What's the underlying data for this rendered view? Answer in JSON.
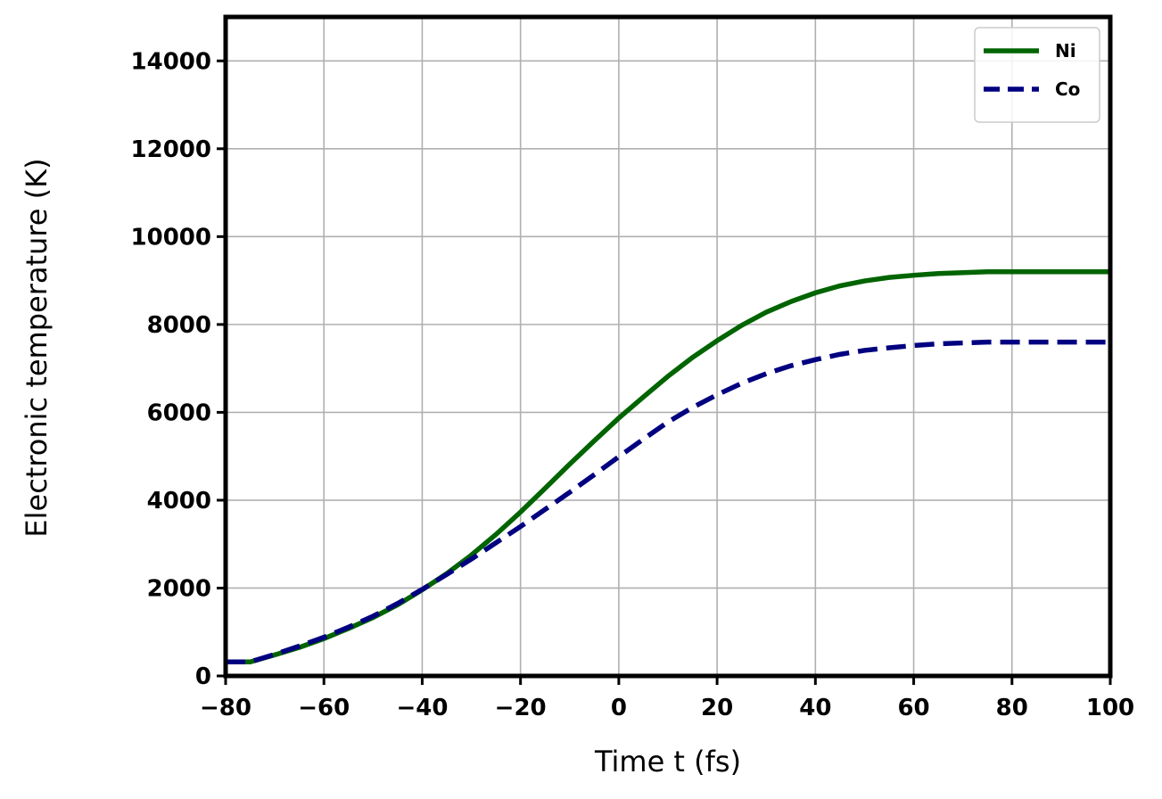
{
  "chart_data": {
    "type": "line",
    "xlabel": "Time t (fs)",
    "ylabel": "Electronic temperature (K)",
    "x": [
      -80,
      -75,
      -70,
      -65,
      -60,
      -55,
      -50,
      -45,
      -40,
      -35,
      -30,
      -25,
      -20,
      -15,
      -10,
      -5,
      0,
      5,
      10,
      15,
      20,
      25,
      30,
      35,
      40,
      45,
      50,
      55,
      60,
      65,
      70,
      75,
      80,
      85,
      90,
      95,
      100
    ],
    "series": [
      {
        "name": "Ni",
        "color": "#006400",
        "linestyle": "solid",
        "values": [
          320,
          320,
          480,
          650,
          850,
          1080,
          1330,
          1620,
          1960,
          2330,
          2750,
          3220,
          3730,
          4270,
          4820,
          5350,
          5870,
          6350,
          6820,
          7250,
          7630,
          7980,
          8280,
          8520,
          8720,
          8880,
          8990,
          9070,
          9120,
          9160,
          9180,
          9200,
          9200,
          9200,
          9200,
          9200,
          9200
        ]
      },
      {
        "name": "Co",
        "color": "#000080",
        "linestyle": "dashed",
        "values": [
          320,
          320,
          490,
          680,
          880,
          1110,
          1360,
          1650,
          1970,
          2310,
          2660,
          3030,
          3400,
          3790,
          4180,
          4580,
          4990,
          5390,
          5780,
          6110,
          6400,
          6660,
          6880,
          7060,
          7200,
          7320,
          7410,
          7470,
          7520,
          7560,
          7580,
          7600,
          7600,
          7600,
          7600,
          7600,
          7600
        ]
      }
    ],
    "xlim": [
      -80,
      100
    ],
    "xticks": [
      {
        "value": -80,
        "label": "−80"
      },
      {
        "value": -60,
        "label": "−60"
      },
      {
        "value": -40,
        "label": "−40"
      },
      {
        "value": -20,
        "label": "−20"
      },
      0,
      20,
      40,
      60,
      80,
      100
    ],
    "ylim": [
      0,
      15000
    ],
    "yticks": [
      0,
      2000,
      4000,
      6000,
      8000,
      10000,
      12000,
      14000
    ],
    "grid": true,
    "legend": "upper-right"
  }
}
